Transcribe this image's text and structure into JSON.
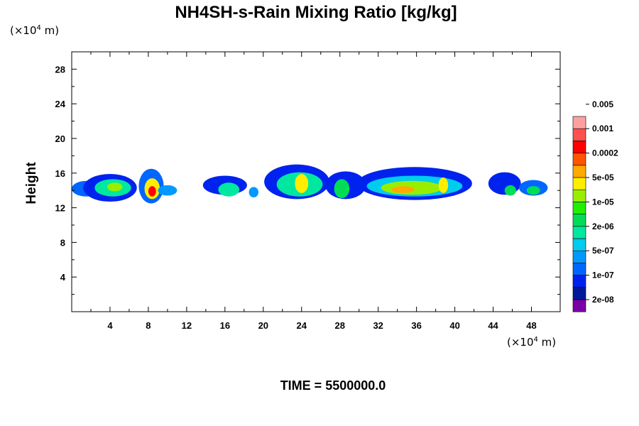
{
  "chart_data": {
    "type": "heatmap",
    "title": "NH4SH-s-Rain Mixing Ratio [kg/kg]",
    "ylabel": "Height",
    "x_unit": "(×10",
    "x_unit_exp": "4",
    "x_unit_suffix": " m)",
    "y_unit": "(×10",
    "y_unit_exp": "4",
    "y_unit_suffix": " m)",
    "xlim": [
      0,
      51
    ],
    "ylim": [
      0,
      30
    ],
    "x_ticks": [
      4,
      8,
      12,
      16,
      20,
      24,
      28,
      32,
      36,
      40,
      44,
      48
    ],
    "y_ticks": [
      4,
      8,
      12,
      16,
      20,
      24,
      28
    ],
    "footer": "TIME = 5500000.0",
    "legend": {
      "colors": [
        "#7b00a8",
        "#001a99",
        "#0022ee",
        "#0066ff",
        "#0099ff",
        "#00ccee",
        "#00e8a0",
        "#00dd55",
        "#22ee00",
        "#99ee00",
        "#ffee00",
        "#ffaa00",
        "#ff5500",
        "#ff0000",
        "#ff5050",
        "#ffa0a0"
      ],
      "labels": [
        "2e-08",
        "1e-07",
        "5e-07",
        "2e-06",
        "1e-05",
        "5e-05",
        "0.0002",
        "0.001",
        "0.005"
      ]
    },
    "cells": [
      {
        "x": 1.5,
        "y": 14.2,
        "rx": 1.5,
        "ry": 0.9,
        "level": 3
      },
      {
        "x": 4.0,
        "y": 14.3,
        "rx": 2.8,
        "ry": 1.6,
        "level": 2
      },
      {
        "x": 4.3,
        "y": 14.3,
        "rx": 1.9,
        "ry": 1.0,
        "level": 6
      },
      {
        "x": 4.5,
        "y": 14.4,
        "rx": 0.8,
        "ry": 0.5,
        "level": 9
      },
      {
        "x": 8.3,
        "y": 14.5,
        "rx": 1.3,
        "ry": 2.0,
        "level": 3
      },
      {
        "x": 8.4,
        "y": 14.2,
        "rx": 0.8,
        "ry": 1.2,
        "level": 10
      },
      {
        "x": 8.4,
        "y": 13.9,
        "rx": 0.4,
        "ry": 0.6,
        "level": 13
      },
      {
        "x": 10.0,
        "y": 14.0,
        "rx": 1.0,
        "ry": 0.6,
        "level": 4
      },
      {
        "x": 16.0,
        "y": 14.6,
        "rx": 2.3,
        "ry": 1.1,
        "level": 2
      },
      {
        "x": 16.4,
        "y": 14.1,
        "rx": 1.1,
        "ry": 0.8,
        "level": 6
      },
      {
        "x": 19.0,
        "y": 13.8,
        "rx": 0.5,
        "ry": 0.6,
        "level": 4
      },
      {
        "x": 23.5,
        "y": 15.0,
        "rx": 3.4,
        "ry": 2.0,
        "level": 2
      },
      {
        "x": 23.8,
        "y": 14.7,
        "rx": 2.4,
        "ry": 1.4,
        "level": 6
      },
      {
        "x": 24.0,
        "y": 14.8,
        "rx": 0.7,
        "ry": 1.1,
        "level": 10
      },
      {
        "x": 28.6,
        "y": 14.6,
        "rx": 2.1,
        "ry": 1.6,
        "level": 2
      },
      {
        "x": 28.2,
        "y": 14.2,
        "rx": 0.8,
        "ry": 1.1,
        "level": 7
      },
      {
        "x": 35.8,
        "y": 14.8,
        "rx": 6.0,
        "ry": 1.9,
        "level": 2
      },
      {
        "x": 35.8,
        "y": 14.5,
        "rx": 5.0,
        "ry": 1.2,
        "level": 5
      },
      {
        "x": 35.5,
        "y": 14.3,
        "rx": 3.2,
        "ry": 0.8,
        "level": 9
      },
      {
        "x": 34.6,
        "y": 14.1,
        "rx": 1.2,
        "ry": 0.4,
        "level": 11
      },
      {
        "x": 38.8,
        "y": 14.6,
        "rx": 0.5,
        "ry": 0.9,
        "level": 10
      },
      {
        "x": 45.2,
        "y": 14.8,
        "rx": 1.7,
        "ry": 1.3,
        "level": 2
      },
      {
        "x": 45.8,
        "y": 14.0,
        "rx": 0.6,
        "ry": 0.6,
        "level": 7
      },
      {
        "x": 48.2,
        "y": 14.3,
        "rx": 1.5,
        "ry": 0.9,
        "level": 3
      },
      {
        "x": 48.2,
        "y": 14.0,
        "rx": 0.7,
        "ry": 0.5,
        "level": 7
      }
    ]
  }
}
